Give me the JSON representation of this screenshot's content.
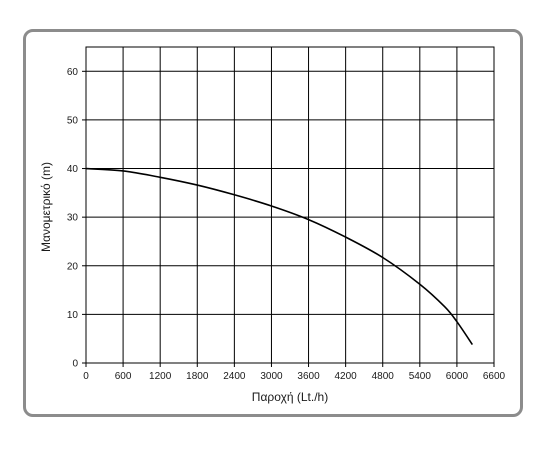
{
  "chart_data": {
    "type": "line",
    "title": "",
    "xlabel": "Παροχή (Lt./h)",
    "ylabel": "Μανομετρικό  (m)",
    "xlim": [
      0,
      6600
    ],
    "ylim": [
      0,
      65
    ],
    "x_ticks": [
      0,
      600,
      1200,
      1800,
      2400,
      3000,
      3600,
      4200,
      4800,
      5400,
      6000,
      6600
    ],
    "y_ticks": [
      0,
      10,
      20,
      30,
      40,
      50,
      60
    ],
    "x_tick_labels": [
      "0",
      "600",
      "1200",
      "1800",
      "2400",
      "3000",
      "3600",
      "4200",
      "4800",
      "5400",
      "6000",
      "6600"
    ],
    "y_tick_labels": [
      "0",
      "10",
      "20",
      "30",
      "40",
      "50",
      "60"
    ],
    "grid": true,
    "legend": "none",
    "series": [
      {
        "x": [
          0,
          600,
          1200,
          1800,
          2400,
          3000,
          3600,
          4200,
          4800,
          5400,
          5800,
          6000,
          6250
        ],
        "y": [
          40,
          39.5,
          38.2,
          36.6,
          34.6,
          32.3,
          29.5,
          25.9,
          21.7,
          16.2,
          11.6,
          8.5,
          3.8
        ]
      }
    ],
    "colors": {
      "line": "#000000",
      "grid": "#000000",
      "frame": "#8c8c8c"
    }
  }
}
